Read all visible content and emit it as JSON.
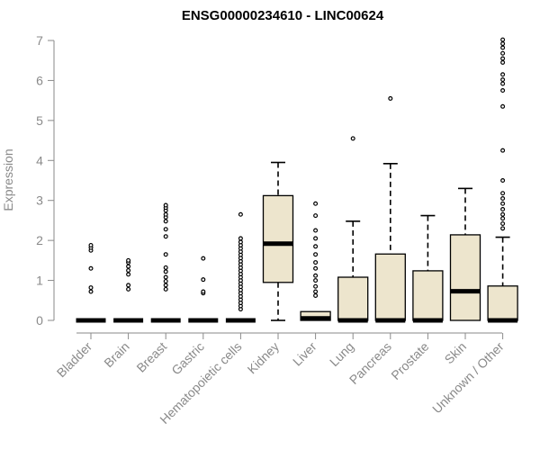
{
  "chart_data": {
    "type": "box",
    "title": "ENSG00000234610 - LINC00624",
    "xlabel": "",
    "ylabel": "Expression",
    "ylim": [
      0,
      7
    ],
    "yticks": [
      0,
      1,
      2,
      3,
      4,
      5,
      6,
      7
    ],
    "grid": false,
    "legend": "none",
    "box_fill": "#ede5cd",
    "box_stroke": "#000000",
    "axis_color": "#8a8a8a",
    "categories": [
      "Bladder",
      "Brain",
      "Breast",
      "Gastric",
      "Hematopoietic cells",
      "Kidney",
      "Liver",
      "Lung",
      "Pancreas",
      "Prostate",
      "Skin",
      "Unknown / Other"
    ],
    "boxes": [
      {
        "category": "Bladder",
        "q1": 0,
        "median": 0,
        "q3": 0,
        "whisker_low": 0,
        "whisker_high": 0,
        "outliers": [
          0.72,
          0.82,
          1.3,
          1.75,
          1.82,
          1.88
        ]
      },
      {
        "category": "Brain",
        "q1": 0,
        "median": 0,
        "q3": 0,
        "whisker_low": 0,
        "whisker_high": 0,
        "outliers": [
          0.78,
          0.88,
          1.15,
          1.25,
          1.35,
          1.45,
          1.5
        ]
      },
      {
        "category": "Breast",
        "q1": 0,
        "median": 0,
        "q3": 0,
        "whisker_low": 0,
        "whisker_high": 0,
        "outliers": [
          0.78,
          0.88,
          0.98,
          1.08,
          1.22,
          1.32,
          1.65,
          2.1,
          2.28,
          2.48,
          2.58,
          2.65,
          2.75,
          2.82,
          2.88
        ]
      },
      {
        "category": "Gastric",
        "q1": 0,
        "median": 0,
        "q3": 0,
        "whisker_low": 0,
        "whisker_high": 0,
        "outliers": [
          0.68,
          0.72,
          1.02,
          1.55
        ]
      },
      {
        "category": "Hematopoietic cells",
        "q1": 0,
        "median": 0,
        "q3": 0,
        "whisker_low": 0,
        "whisker_high": 0,
        "outliers": [
          0.28,
          0.36,
          0.44,
          0.52,
          0.6,
          0.68,
          0.76,
          0.84,
          0.92,
          1.0,
          1.08,
          1.16,
          1.24,
          1.32,
          1.4,
          1.48,
          1.56,
          1.64,
          1.72,
          1.8,
          1.88,
          1.96,
          2.05,
          2.65
        ]
      },
      {
        "category": "Kidney",
        "q1": 0.95,
        "median": 1.92,
        "q3": 3.12,
        "whisker_low": 0,
        "whisker_high": 3.95,
        "outliers": []
      },
      {
        "category": "Liver",
        "q1": 0,
        "median": 0.05,
        "q3": 0.22,
        "whisker_low": 0,
        "whisker_high": 0.22,
        "outliers": [
          0.62,
          0.72,
          0.85,
          1.0,
          1.12,
          1.3,
          1.45,
          1.65,
          1.85,
          2.05,
          2.25,
          2.62,
          2.92
        ]
      },
      {
        "category": "Lung",
        "q1": 0,
        "median": 0,
        "q3": 1.08,
        "whisker_low": 0,
        "whisker_high": 2.48,
        "outliers": [
          4.55
        ]
      },
      {
        "category": "Pancreas",
        "q1": 0,
        "median": 0,
        "q3": 1.66,
        "whisker_low": 0,
        "whisker_high": 3.92,
        "outliers": [
          5.55
        ]
      },
      {
        "category": "Prostate",
        "q1": 0,
        "median": 0,
        "q3": 1.24,
        "whisker_low": 0,
        "whisker_high": 2.62,
        "outliers": []
      },
      {
        "category": "Skin",
        "q1": 0,
        "median": 0.73,
        "q3": 2.14,
        "whisker_low": 0,
        "whisker_high": 3.3,
        "outliers": []
      },
      {
        "category": "Unknown / Other",
        "q1": 0,
        "median": 0,
        "q3": 0.86,
        "whisker_low": 0,
        "whisker_high": 2.08,
        "outliers": [
          2.3,
          2.42,
          2.55,
          2.65,
          2.78,
          2.92,
          3.05,
          3.18,
          3.5,
          4.25,
          5.35,
          5.75,
          5.92,
          6.02,
          6.15,
          6.45,
          6.55,
          6.68,
          6.82,
          6.92,
          7.02
        ]
      }
    ]
  }
}
